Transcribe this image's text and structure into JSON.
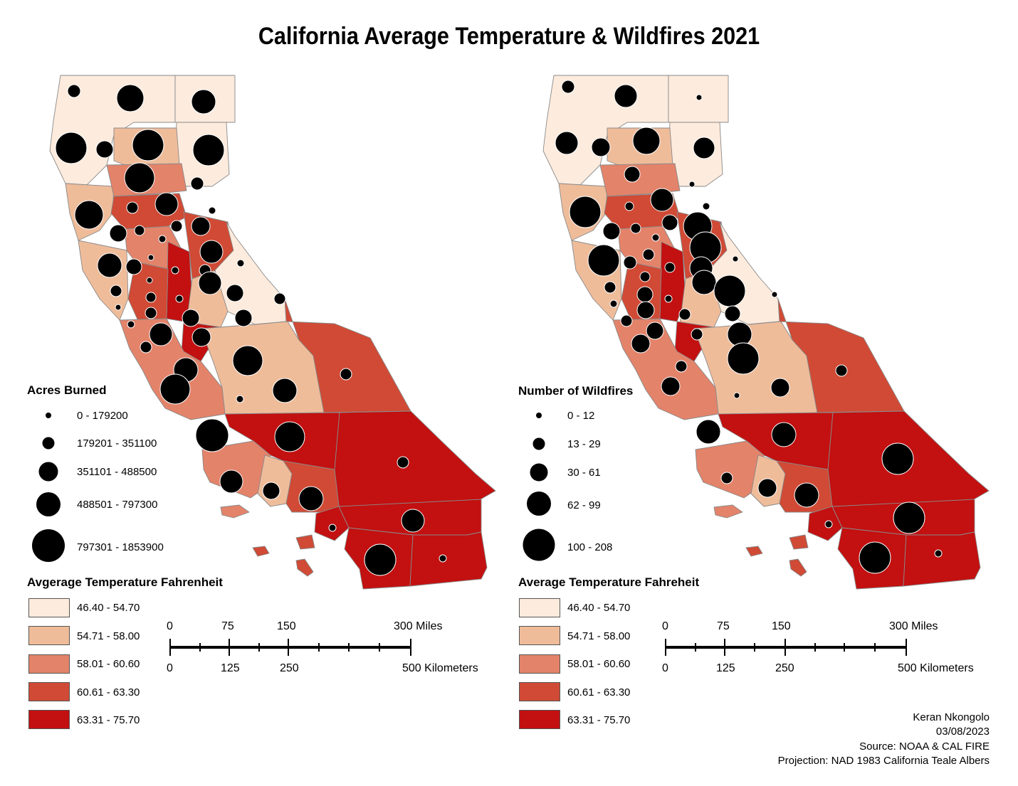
{
  "title": "California Average Temperature & Wildfires 2021",
  "colors": {
    "class1": "#fdebdd",
    "class2": "#efbc9a",
    "class3": "#e3836a",
    "class4": "#d04a35",
    "class5": "#c31010",
    "symbol": "#000000",
    "boundary": "#8a8a8a"
  },
  "left_panel": {
    "symbol_legend_title": "Acres Burned",
    "symbol_classes": [
      "0 - 179200",
      "179201 - 351100",
      "351101 - 488500",
      "488501 - 797300",
      "797301 - 1853900"
    ],
    "temp_legend_title": "Avgerage Temperature Fahrenheit",
    "temp_classes": [
      "46.40 - 54.70",
      "54.71 - 58.00",
      "58.01 - 60.60",
      "60.61 - 63.30",
      "63.31 - 75.70"
    ]
  },
  "right_panel": {
    "symbol_legend_title": "Number of Wildfires",
    "symbol_classes": [
      "0 - 12",
      "13 - 29",
      "30 - 61",
      "62 - 99",
      "100 - 208"
    ],
    "temp_legend_title": "Average Temperature Fahreheit",
    "temp_classes": [
      "46.40 - 54.70",
      "54.71 - 58.00",
      "58.01 - 60.60",
      "60.61 - 63.30",
      "63.31 - 75.70"
    ]
  },
  "scale_bar": {
    "miles_ticks": [
      "0",
      "75",
      "150",
      "300 Miles"
    ],
    "km_ticks": [
      "0",
      "125",
      "250",
      "500 Kilometers"
    ]
  },
  "credits": {
    "author": "Keran Nkongolo",
    "date": "03/08/2023",
    "source": "Source: NOAA & CAL FIRE",
    "projection": "Projection: NAD 1983 California Teale Albers"
  }
}
